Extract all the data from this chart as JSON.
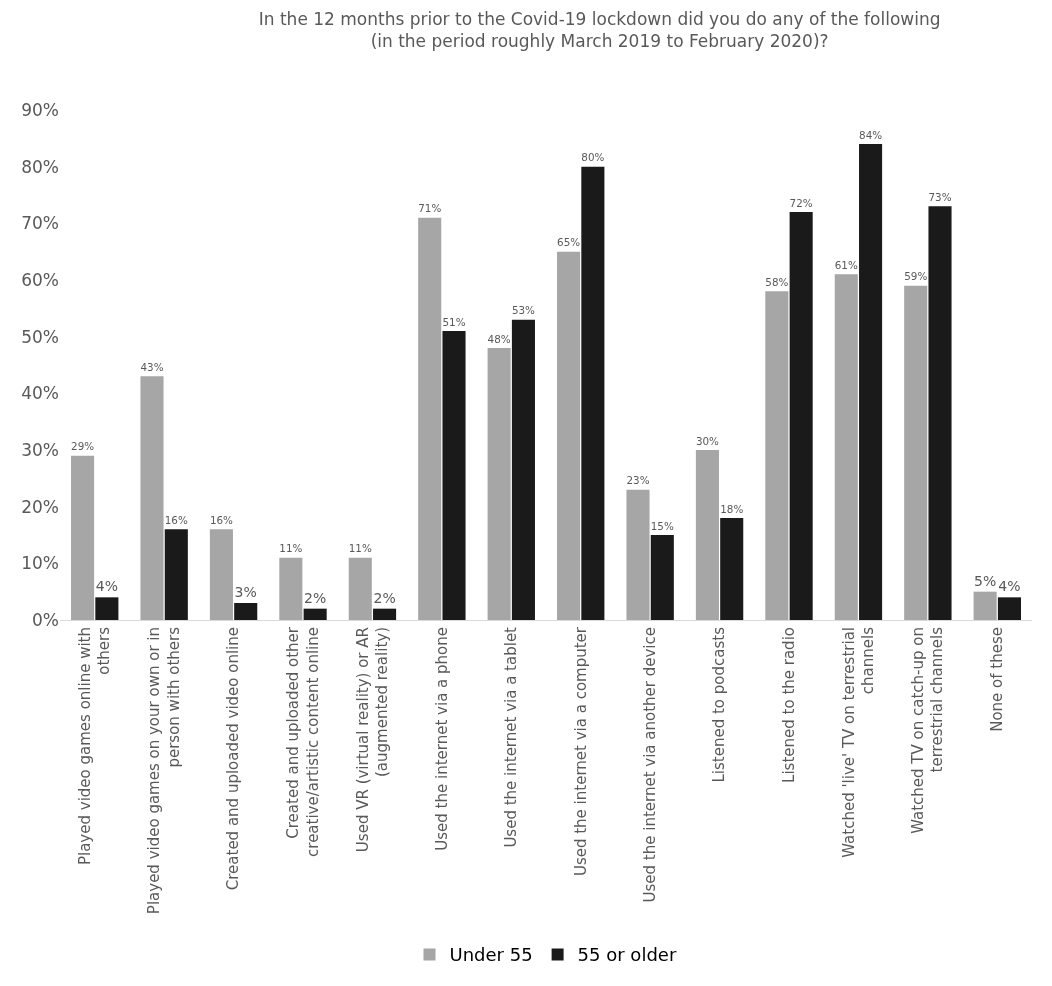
{
  "chart_data": {
    "type": "bar",
    "title": "In the 12 months prior to the Covid-19 lockdown did you do any of the following (in the period roughly March 2019 to February 2020)?",
    "categories": [
      "Played video games online with others",
      "Played video games on your own or in person with others",
      "Created and uploaded video online",
      "Created and uploaded other creative/artistic content online",
      "Used VR (virtual reality) or AR (augmented reality)",
      "Used the internet via a phone",
      "Used the internet via a tablet",
      "Used the internet via a computer",
      "Used the internet via another device",
      "Listened to podcasts",
      "Listened to the radio",
      "Watched 'live' TV on terrestrial channels",
      "Watched TV on catch-up on terrestrial channels",
      "None of these"
    ],
    "series": [
      {
        "name": "Under 55",
        "color": "#a6a6a6",
        "values": [
          29,
          43,
          16,
          11,
          11,
          71,
          48,
          65,
          23,
          30,
          58,
          61,
          59,
          5
        ],
        "value_labels": [
          "29%",
          "43%",
          "16%",
          "11%",
          "11%",
          "71%",
          "48%",
          "65%",
          "23%",
          "30%",
          "58%",
          "61%",
          "59%",
          "5%"
        ]
      },
      {
        "name": "55 or older",
        "color": "#1a1a1a",
        "values": [
          4,
          16,
          3,
          2,
          2,
          51,
          53,
          80,
          15,
          18,
          72,
          84,
          73,
          4
        ],
        "value_labels": [
          "4%",
          "16%",
          "3%",
          "2%",
          "2%",
          "51%",
          "53%",
          "80%",
          "15%",
          "18%",
          "72%",
          "84%",
          "73%",
          "4%"
        ]
      }
    ],
    "ylim": [
      0,
      90
    ],
    "yticks": [
      {
        "value": 0,
        "label": "0%"
      },
      {
        "value": 10,
        "label": "10%"
      },
      {
        "value": 20,
        "label": "20%"
      },
      {
        "value": 30,
        "label": "30%"
      },
      {
        "value": 40,
        "label": "40%"
      },
      {
        "value": 50,
        "label": "50%"
      },
      {
        "value": 60,
        "label": "60%"
      },
      {
        "value": 70,
        "label": "70%"
      },
      {
        "value": 80,
        "label": "80%"
      },
      {
        "value": 90,
        "label": "90%"
      }
    ],
    "grid": false,
    "legend": "bottom"
  }
}
